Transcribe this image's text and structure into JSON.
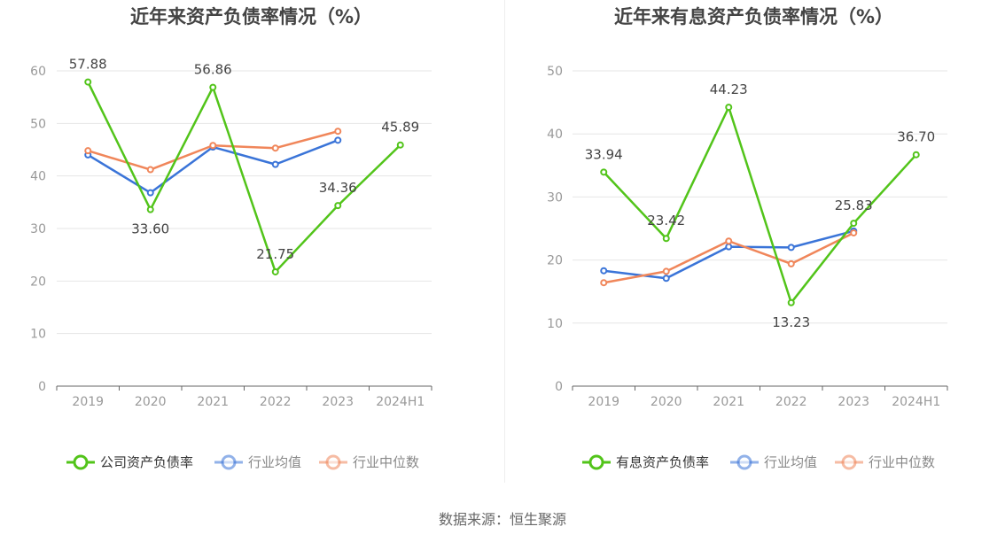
{
  "footer": {
    "source_label": "数据来源：",
    "source_name": "恒生聚源"
  },
  "colors": {
    "green": "#52c41a",
    "blue": "#3a74d8",
    "orange": "#f0865a",
    "grid": "#e6e6e6",
    "axis": "#666666",
    "tick": "#999999",
    "label": "#444444"
  },
  "chart_data": [
    {
      "type": "line",
      "title": "近年来资产负债率情况（%）",
      "categories": [
        "2019",
        "2020",
        "2021",
        "2022",
        "2023",
        "2024H1"
      ],
      "ylim": [
        0,
        60
      ],
      "yticks": [
        0,
        10,
        20,
        30,
        40,
        50,
        60
      ],
      "grid": true,
      "legend_position": "bottom",
      "series": [
        {
          "name": "公司资产负债率",
          "color": "#52c41a",
          "values": [
            57.88,
            33.6,
            56.86,
            21.75,
            34.36,
            45.89
          ],
          "labels": [
            "57.88",
            "33.60",
            "56.86",
            "21.75",
            "34.36",
            "45.89"
          ]
        },
        {
          "name": "行业均值",
          "color": "#3a74d8",
          "values": [
            44.0,
            36.8,
            45.5,
            42.2,
            46.8,
            null
          ]
        },
        {
          "name": "行业中位数",
          "color": "#f0865a",
          "values": [
            44.8,
            41.2,
            45.8,
            45.3,
            48.5,
            null
          ]
        }
      ]
    },
    {
      "type": "line",
      "title": "近年来有息资产负债率情况（%）",
      "categories": [
        "2019",
        "2020",
        "2021",
        "2022",
        "2023",
        "2024H1"
      ],
      "ylim": [
        0,
        50
      ],
      "yticks": [
        0,
        10,
        20,
        30,
        40,
        50
      ],
      "grid": true,
      "legend_position": "bottom",
      "series": [
        {
          "name": "有息资产负债率",
          "color": "#52c41a",
          "values": [
            33.94,
            23.42,
            44.23,
            13.23,
            25.83,
            36.7
          ],
          "labels": [
            "33.94",
            "23.42",
            "44.23",
            "13.23",
            "25.83",
            "36.70"
          ]
        },
        {
          "name": "行业均值",
          "color": "#3a74d8",
          "values": [
            18.3,
            17.1,
            22.1,
            22.0,
            24.6,
            null
          ]
        },
        {
          "name": "行业中位数",
          "color": "#f0865a",
          "values": [
            16.4,
            18.2,
            23.0,
            19.4,
            24.3,
            null
          ]
        }
      ]
    }
  ]
}
